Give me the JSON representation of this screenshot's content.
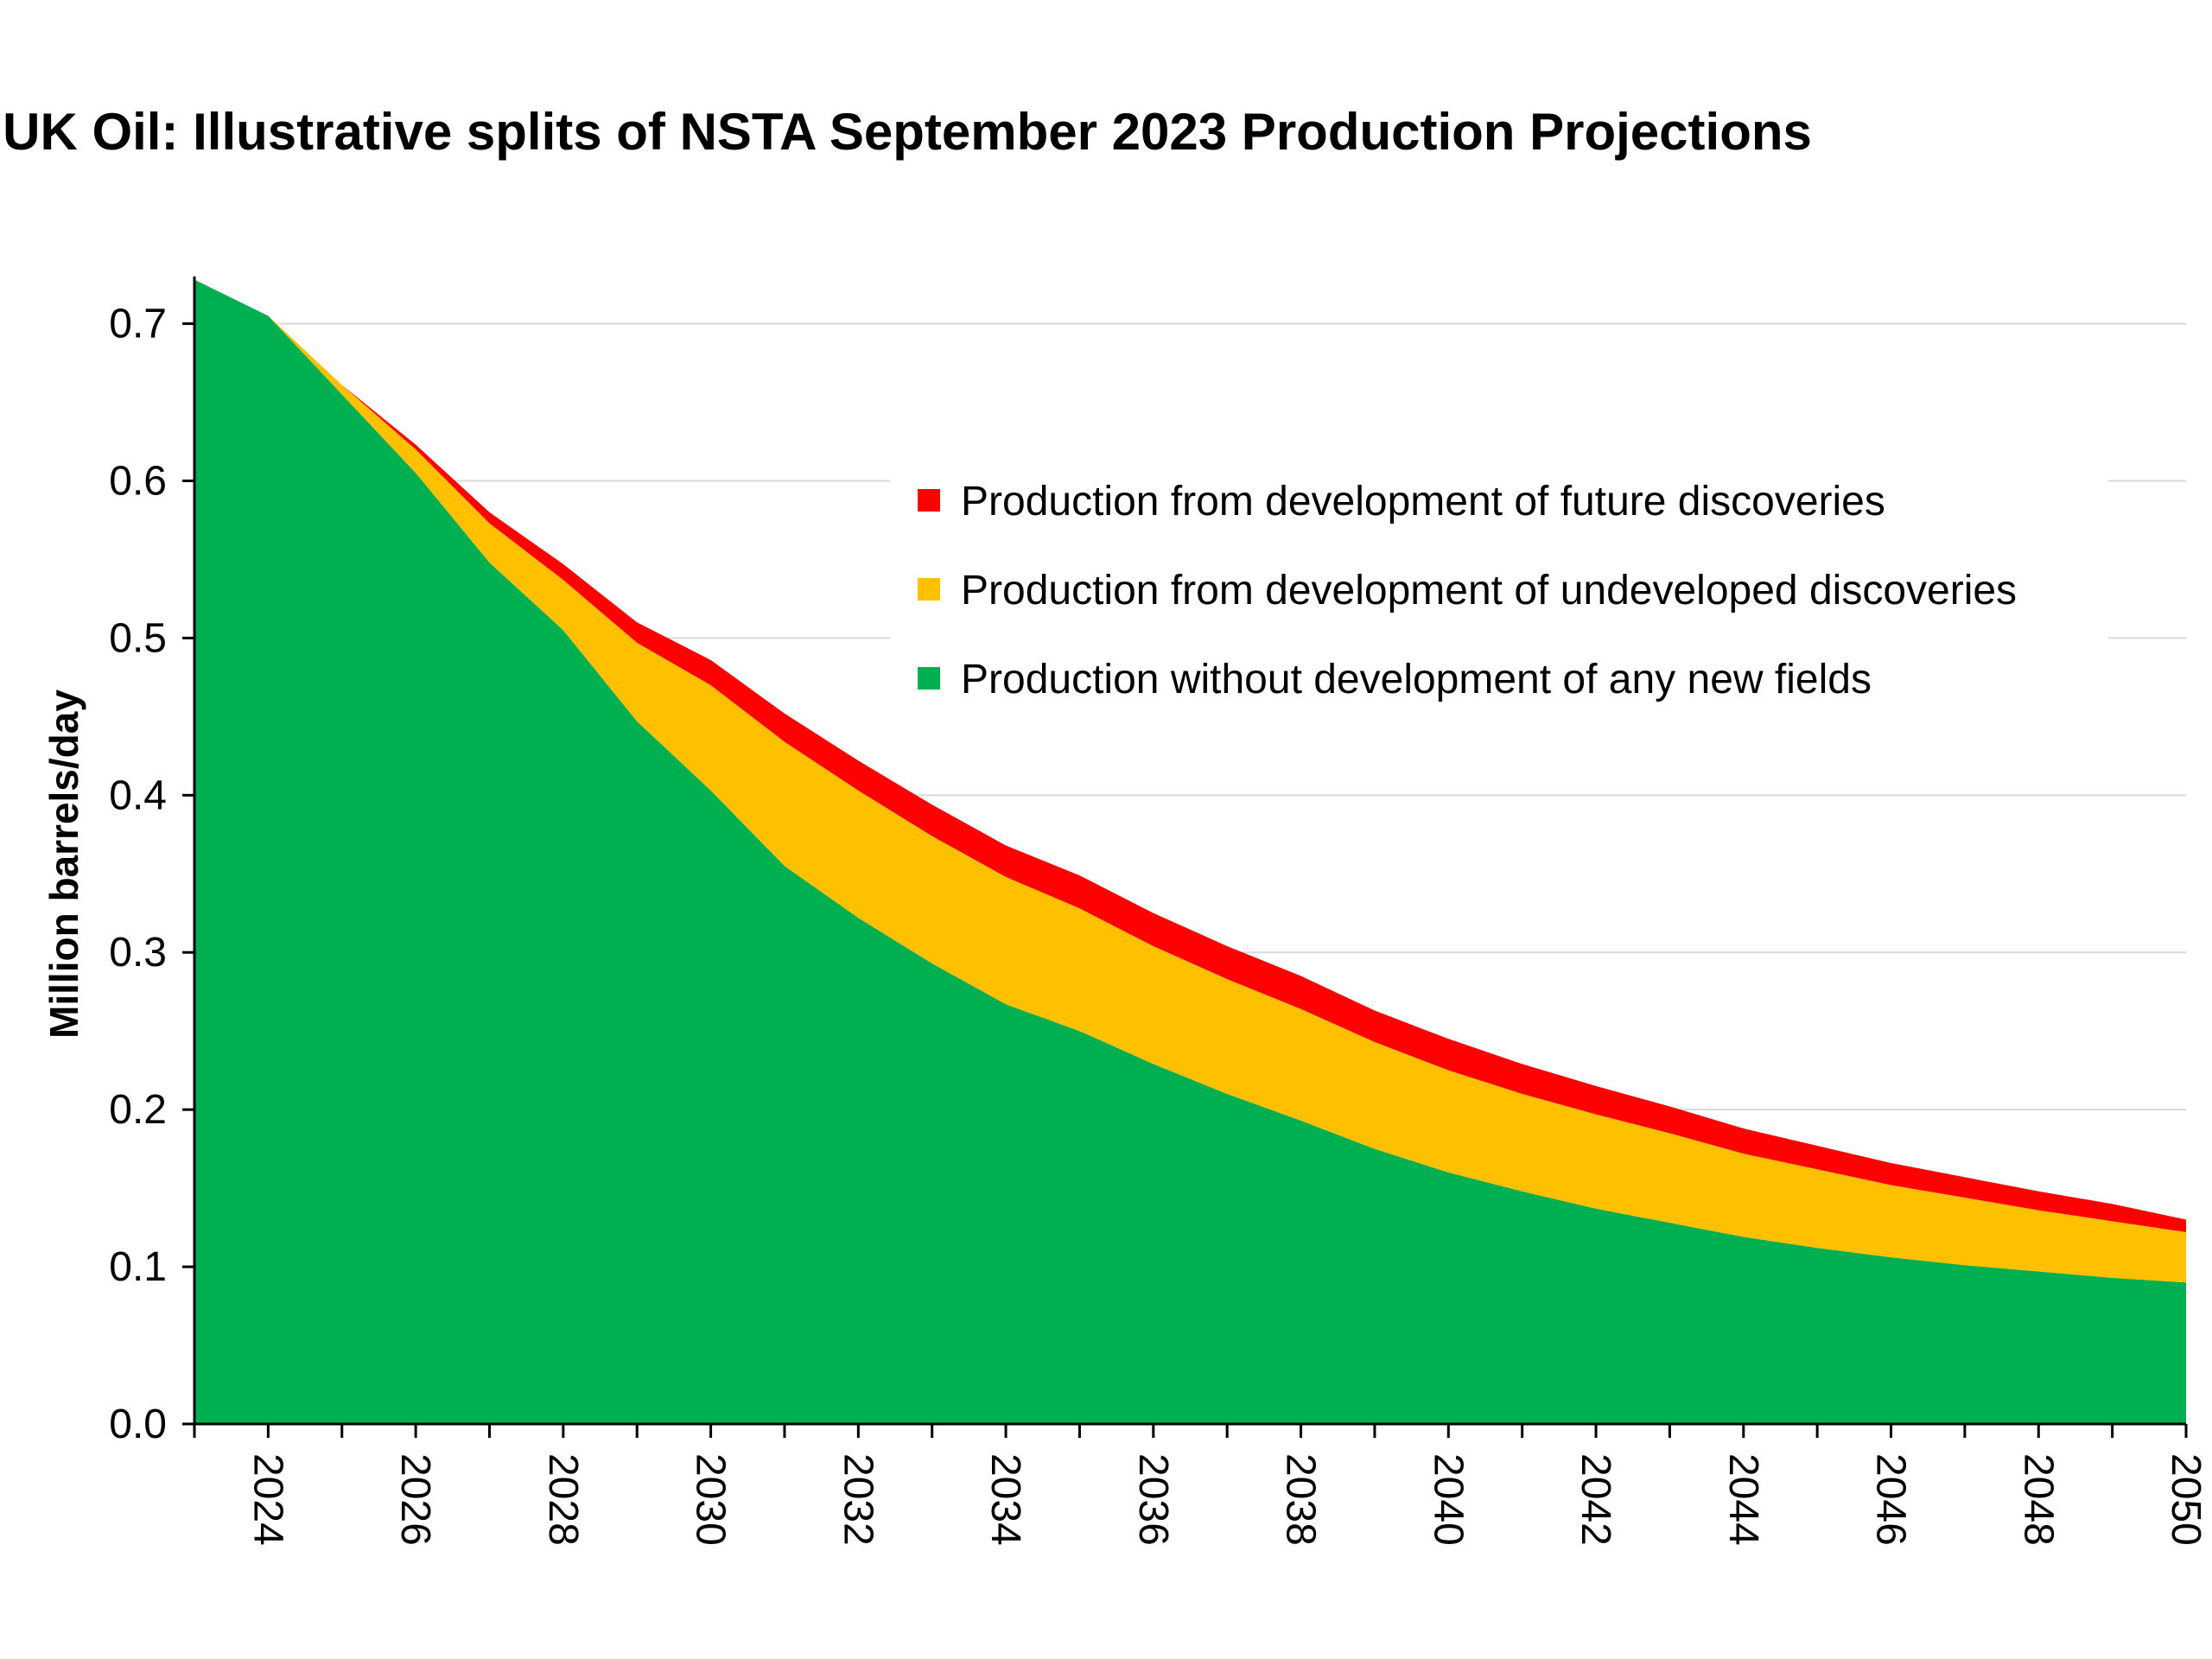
{
  "chart_data": {
    "type": "area",
    "stacked": true,
    "title": "UK Oil: Illustrative splits of NSTA September 2023 Production Projections",
    "xlabel": "",
    "ylabel": "Million barrels/day",
    "x": [
      2023,
      2024,
      2025,
      2026,
      2027,
      2028,
      2029,
      2030,
      2031,
      2032,
      2033,
      2034,
      2035,
      2036,
      2037,
      2038,
      2039,
      2040,
      2041,
      2042,
      2043,
      2044,
      2045,
      2046,
      2047,
      2048,
      2049,
      2050
    ],
    "xlim": [
      2023,
      2050
    ],
    "xticks": [
      "2024",
      "2026",
      "2028",
      "2030",
      "2032",
      "2034",
      "2036",
      "2038",
      "2040",
      "2042",
      "2044",
      "2046",
      "2048",
      "2050"
    ],
    "ylim": [
      0,
      0.73
    ],
    "yticks": [
      "0.0",
      "0.1",
      "0.2",
      "0.3",
      "0.4",
      "0.5",
      "0.6",
      "0.7"
    ],
    "grid": "horizontal",
    "legend_position": "upper-right",
    "series": [
      {
        "name": "Production without development of any new fields",
        "color": "#00B050",
        "values": [
          0.728,
          0.705,
          0.655,
          0.605,
          0.548,
          0.505,
          0.447,
          0.403,
          0.355,
          0.322,
          0.293,
          0.267,
          0.25,
          0.229,
          0.21,
          0.193,
          0.175,
          0.16,
          0.148,
          0.137,
          0.128,
          0.119,
          0.112,
          0.106,
          0.101,
          0.097,
          0.093,
          0.09
        ]
      },
      {
        "name": "Production from development of undeveloped discoveries",
        "color": "#FFC000",
        "values": [
          0.0,
          0.0,
          0.006,
          0.015,
          0.025,
          0.032,
          0.05,
          0.067,
          0.079,
          0.081,
          0.081,
          0.081,
          0.078,
          0.075,
          0.073,
          0.071,
          0.068,
          0.065,
          0.062,
          0.06,
          0.057,
          0.053,
          0.05,
          0.046,
          0.043,
          0.039,
          0.036,
          0.032
        ]
      },
      {
        "name": "Production from development of future discoveries",
        "color": "#FF0000",
        "values": [
          0.0,
          0.0,
          0.0,
          0.003,
          0.007,
          0.01,
          0.013,
          0.016,
          0.018,
          0.019,
          0.02,
          0.02,
          0.021,
          0.021,
          0.021,
          0.021,
          0.02,
          0.02,
          0.019,
          0.018,
          0.017,
          0.016,
          0.015,
          0.014,
          0.013,
          0.012,
          0.011,
          0.008
        ]
      }
    ],
    "legend_order": [
      "Production from development of future discoveries",
      "Production from development of undeveloped discoveries",
      "Production without development of any new fields"
    ]
  }
}
